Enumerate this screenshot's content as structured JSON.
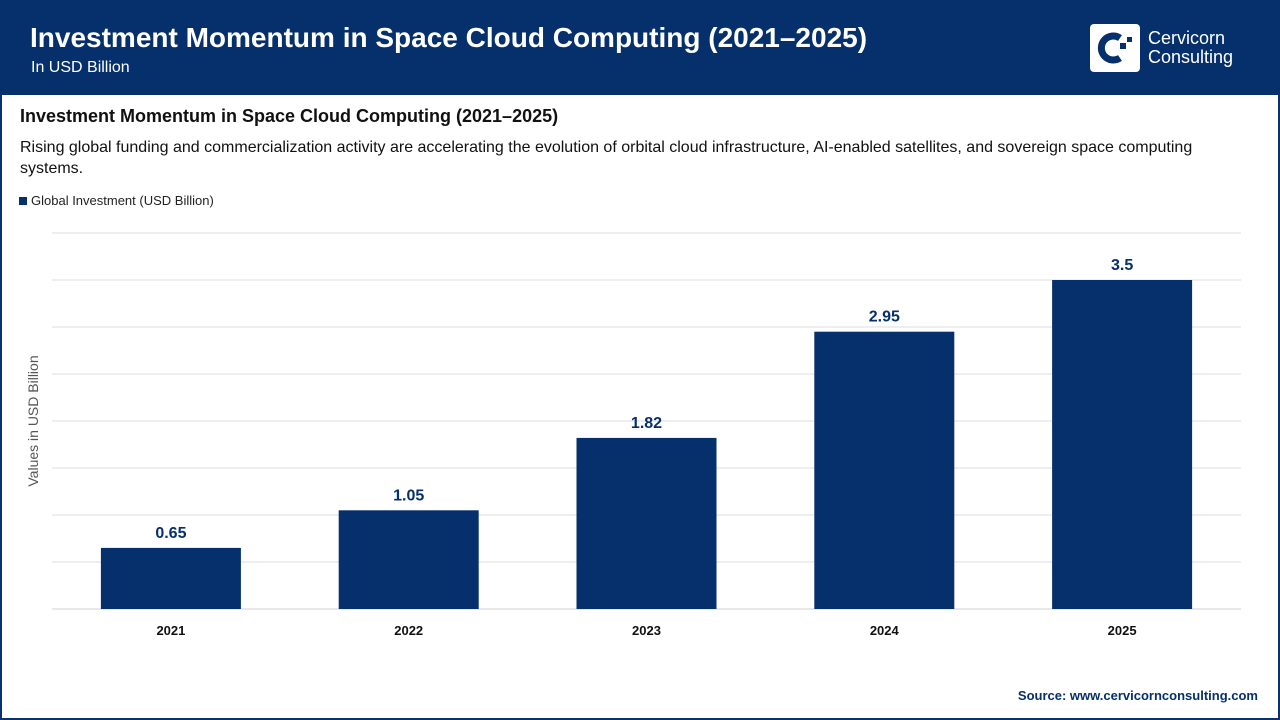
{
  "header": {
    "title": "Investment Momentum in Space Cloud Computing (2021–2025)",
    "subtitle": "In USD Billion",
    "logo_text_1": "Cervicorn",
    "logo_text_2": "Consulting"
  },
  "description": "Rising global funding and commercialization activity are accelerating the evolution of orbital cloud infrastructure, AI-enabled satellites, and sovereign space computing systems.",
  "source": "Source: www.cervicornconsulting.com",
  "chart_data": {
    "type": "bar",
    "title": "Investment Momentum in Space Cloud Computing (2021–2025)",
    "categories": [
      "2021",
      "2022",
      "2023",
      "2024",
      "2025"
    ],
    "series": [
      {
        "name": "Global Investment (USD Billion)",
        "values": [
          0.65,
          1.05,
          1.82,
          2.95,
          3.5
        ],
        "color": "#06306b"
      }
    ],
    "data_labels": [
      "0.65",
      "1.05",
      "1.82",
      "2.95",
      "3.5"
    ],
    "xlabel": "",
    "ylabel": "Values in USD Billion",
    "ylim": [
      0,
      4
    ],
    "grid_step": 0.5,
    "grid": true,
    "y_tick_labels_shown": false,
    "legend": "top-left"
  }
}
